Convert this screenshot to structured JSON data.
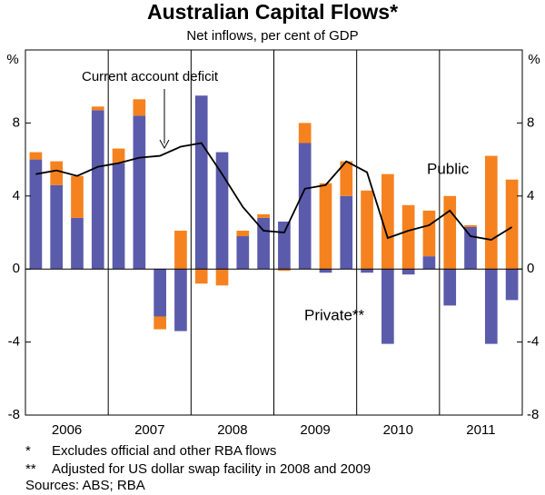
{
  "chart_data": {
    "type": "bar",
    "title": "Australian Capital Flows*",
    "subtitle": "Net inflows, per cent of GDP",
    "y_unit_label": "%",
    "categories": [
      null,
      null,
      null,
      null,
      null,
      null,
      null,
      null,
      null,
      null,
      null,
      null,
      null,
      null,
      null,
      null,
      null,
      null,
      null,
      null,
      null,
      null,
      null,
      null
    ],
    "year_labels": [
      "2006",
      "2007",
      "2008",
      "2009",
      "2010",
      "2011"
    ],
    "series": [
      {
        "name": "Private**",
        "color": "#5b5bab",
        "values": [
          6.0,
          4.6,
          2.8,
          8.7,
          5.8,
          8.4,
          -2.6,
          -3.4,
          9.5,
          6.4,
          1.8,
          2.8,
          2.6,
          6.9,
          -0.2,
          4.0,
          -0.2,
          -4.1,
          -0.3,
          0.7,
          -2.0,
          2.3,
          -4.1,
          -1.7
        ]
      },
      {
        "name": "Public",
        "color": "#f5821f",
        "values": [
          0.4,
          1.3,
          2.3,
          0.2,
          0.8,
          0.9,
          -0.7,
          2.1,
          -0.8,
          -0.9,
          0.3,
          0.2,
          -0.1,
          1.1,
          4.7,
          1.9,
          4.3,
          5.2,
          3.5,
          2.5,
          4.0,
          0.1,
          6.2,
          4.9
        ]
      }
    ],
    "line": {
      "name": "Current account deficit",
      "color": "#000000",
      "values": [
        5.2,
        5.4,
        5.1,
        5.6,
        5.8,
        6.1,
        6.2,
        6.7,
        6.9,
        5.2,
        3.4,
        2.1,
        2.0,
        4.4,
        4.6,
        5.9,
        5.3,
        1.7,
        2.1,
        2.4,
        3.2,
        1.8,
        1.6,
        2.3
      ]
    },
    "ylim": [
      -8,
      12
    ],
    "yticks": [
      -8,
      -4,
      0,
      4,
      8
    ],
    "notes": [
      {
        "mark": "*",
        "text": "Excludes official and other RBA flows"
      },
      {
        "mark": "**",
        "text": "Adjusted for US dollar swap facility in 2008 and 2009"
      }
    ],
    "sources": "Sources: ABS; RBA"
  }
}
